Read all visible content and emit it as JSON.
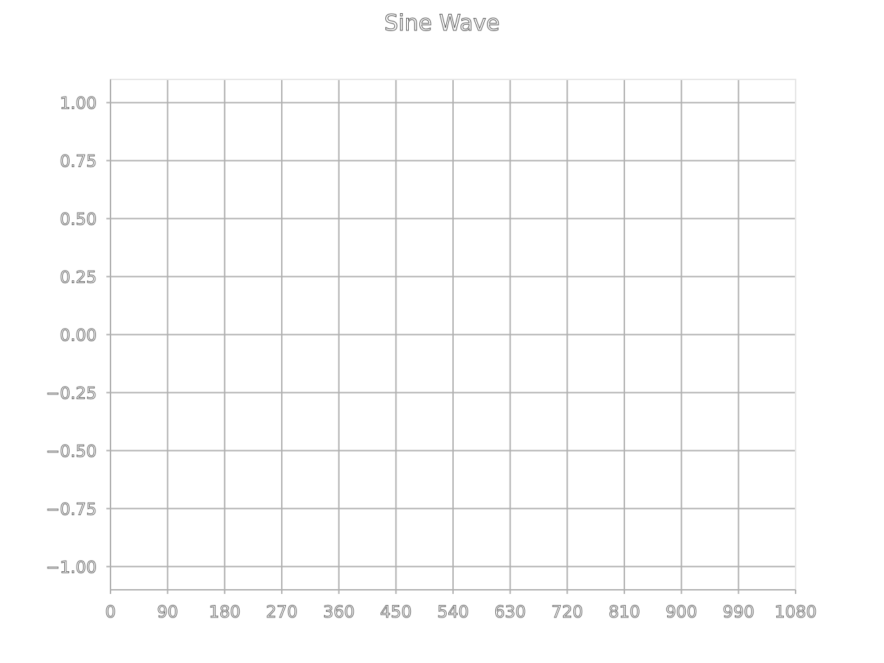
{
  "chart_data": {
    "type": "line",
    "title": "Sine Wave",
    "xlabel": "",
    "ylabel": "",
    "xlim": [
      0,
      1080
    ],
    "ylim": [
      -1.1,
      1.1
    ],
    "x_ticks": [
      0,
      90,
      180,
      270,
      360,
      450,
      540,
      630,
      720,
      810,
      900,
      990,
      1080
    ],
    "x_tick_labels": [
      "0",
      "90",
      "180",
      "270",
      "360",
      "450",
      "540",
      "630",
      "720",
      "810",
      "900",
      "990",
      "1080"
    ],
    "y_ticks": [
      1.0,
      0.75,
      0.5,
      0.25,
      0.0,
      -0.25,
      -0.5,
      -0.75,
      -1.0
    ],
    "y_tick_labels": [
      "1.00",
      "0.75",
      "0.50",
      "0.25",
      "0.00",
      "−0.25",
      "−0.50",
      "−0.75",
      "−1.00"
    ],
    "grid": true,
    "series": [
      {
        "color": "#ffffff",
        "x": [],
        "y": []
      }
    ]
  }
}
